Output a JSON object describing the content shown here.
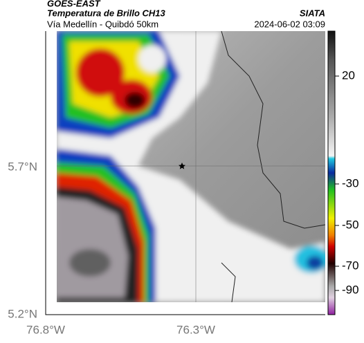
{
  "header": {
    "title": "GOES-EAST",
    "subtitle": "Temperatura de Brillo CH13",
    "source": "SIATA",
    "route": "Vía Medellín - Quibdó 50km",
    "timestamp": "2024-06-02 03:09"
  },
  "axes": {
    "y_labels": [
      "5.7°N",
      "5.2°N"
    ],
    "x_labels": [
      "76.8°W",
      "76.3°W"
    ]
  },
  "colorbar": {
    "ticks": [
      20,
      -30,
      -50,
      -70,
      -90
    ]
  }
}
